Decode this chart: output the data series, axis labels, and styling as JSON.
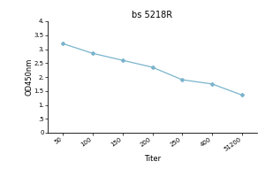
{
  "title": "bs 5218R",
  "xlabel": "Titer",
  "ylabel": "OD450nm",
  "x_labels": [
    "50",
    "100",
    "150",
    "200",
    "250",
    "400",
    "51200"
  ],
  "x_values": [
    1,
    2,
    3,
    4,
    5,
    6,
    7
  ],
  "y_values": [
    3.2,
    2.85,
    2.6,
    2.35,
    1.9,
    1.75,
    1.35
  ],
  "ylim": [
    0,
    4
  ],
  "yticks": [
    0,
    0.5,
    1.0,
    1.5,
    2.0,
    2.5,
    3.0,
    3.5,
    4.0
  ],
  "ytick_labels": [
    "0",
    ".5",
    "1.",
    "1.5",
    "2.",
    "2.5",
    "3.",
    "3.5",
    "4."
  ],
  "line_color": "#7ab4cc",
  "marker": "D",
  "marker_size": 2.0,
  "line_width": 0.9,
  "title_fontsize": 7,
  "label_fontsize": 6,
  "tick_fontsize": 5,
  "background_color": "#ffffff"
}
